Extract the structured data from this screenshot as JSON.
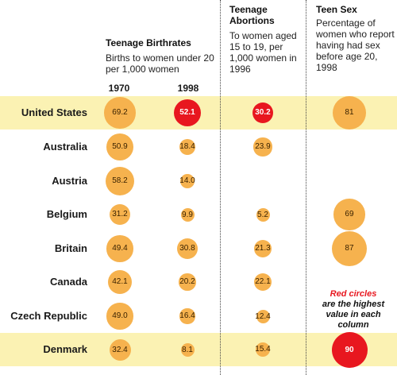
{
  "headers": {
    "birthrates_title": "Teenage Birthrates",
    "birthrates_sub": "Births to women under 20 per 1,000 women",
    "year_1970": "1970",
    "year_1998": "1998",
    "abortions_title": "Teenage Abortions",
    "abortions_sub": "To women aged 15 to 19, per 1,000 women in 1996",
    "teensex_title": "Teen Sex",
    "teensex_sub": "Percentage of women who report having had sex before age 20, 1998"
  },
  "note": {
    "red_part": "Red circles",
    "rest": "are the highest value in each column"
  },
  "colors": {
    "bubble": "#f6b24e",
    "bubble_max": "#e8171f",
    "highlight_row": "#fbf2b3"
  },
  "chart_data": {
    "type": "table",
    "columns": [
      "1970",
      "1998",
      "Teenage Abortions",
      "Teen Sex"
    ],
    "rows": [
      {
        "country": "United States",
        "b1970": "69.2",
        "b1998": "52.1",
        "abortions": "30.2",
        "teensex": "81",
        "highlight": true
      },
      {
        "country": "Australia",
        "b1970": "50.9",
        "b1998": "18.4",
        "abortions": "23.9",
        "teensex": null,
        "highlight": false
      },
      {
        "country": "Austria",
        "b1970": "58.2",
        "b1998": "14.0",
        "abortions": null,
        "teensex": null,
        "highlight": false
      },
      {
        "country": "Belgium",
        "b1970": "31.2",
        "b1998": "9.9",
        "abortions": "5.2",
        "teensex": "69",
        "highlight": false
      },
      {
        "country": "Britain",
        "b1970": "49.4",
        "b1998": "30.8",
        "abortions": "21.3",
        "teensex": "87",
        "highlight": false
      },
      {
        "country": "Canada",
        "b1970": "42.1",
        "b1998": "20.2",
        "abortions": "22.1",
        "teensex": null,
        "highlight": false
      },
      {
        "country": "Czech Republic",
        "b1970": "49.0",
        "b1998": "16.4",
        "abortions": "12.4",
        "teensex": null,
        "highlight": false
      },
      {
        "country": "Denmark",
        "b1970": "32.4",
        "b1998": "8.1",
        "abortions": "15.4",
        "teensex": "90",
        "highlight": true
      }
    ],
    "max": {
      "b1998": "52.1",
      "abortions": "30.2",
      "teensex": "90"
    }
  }
}
